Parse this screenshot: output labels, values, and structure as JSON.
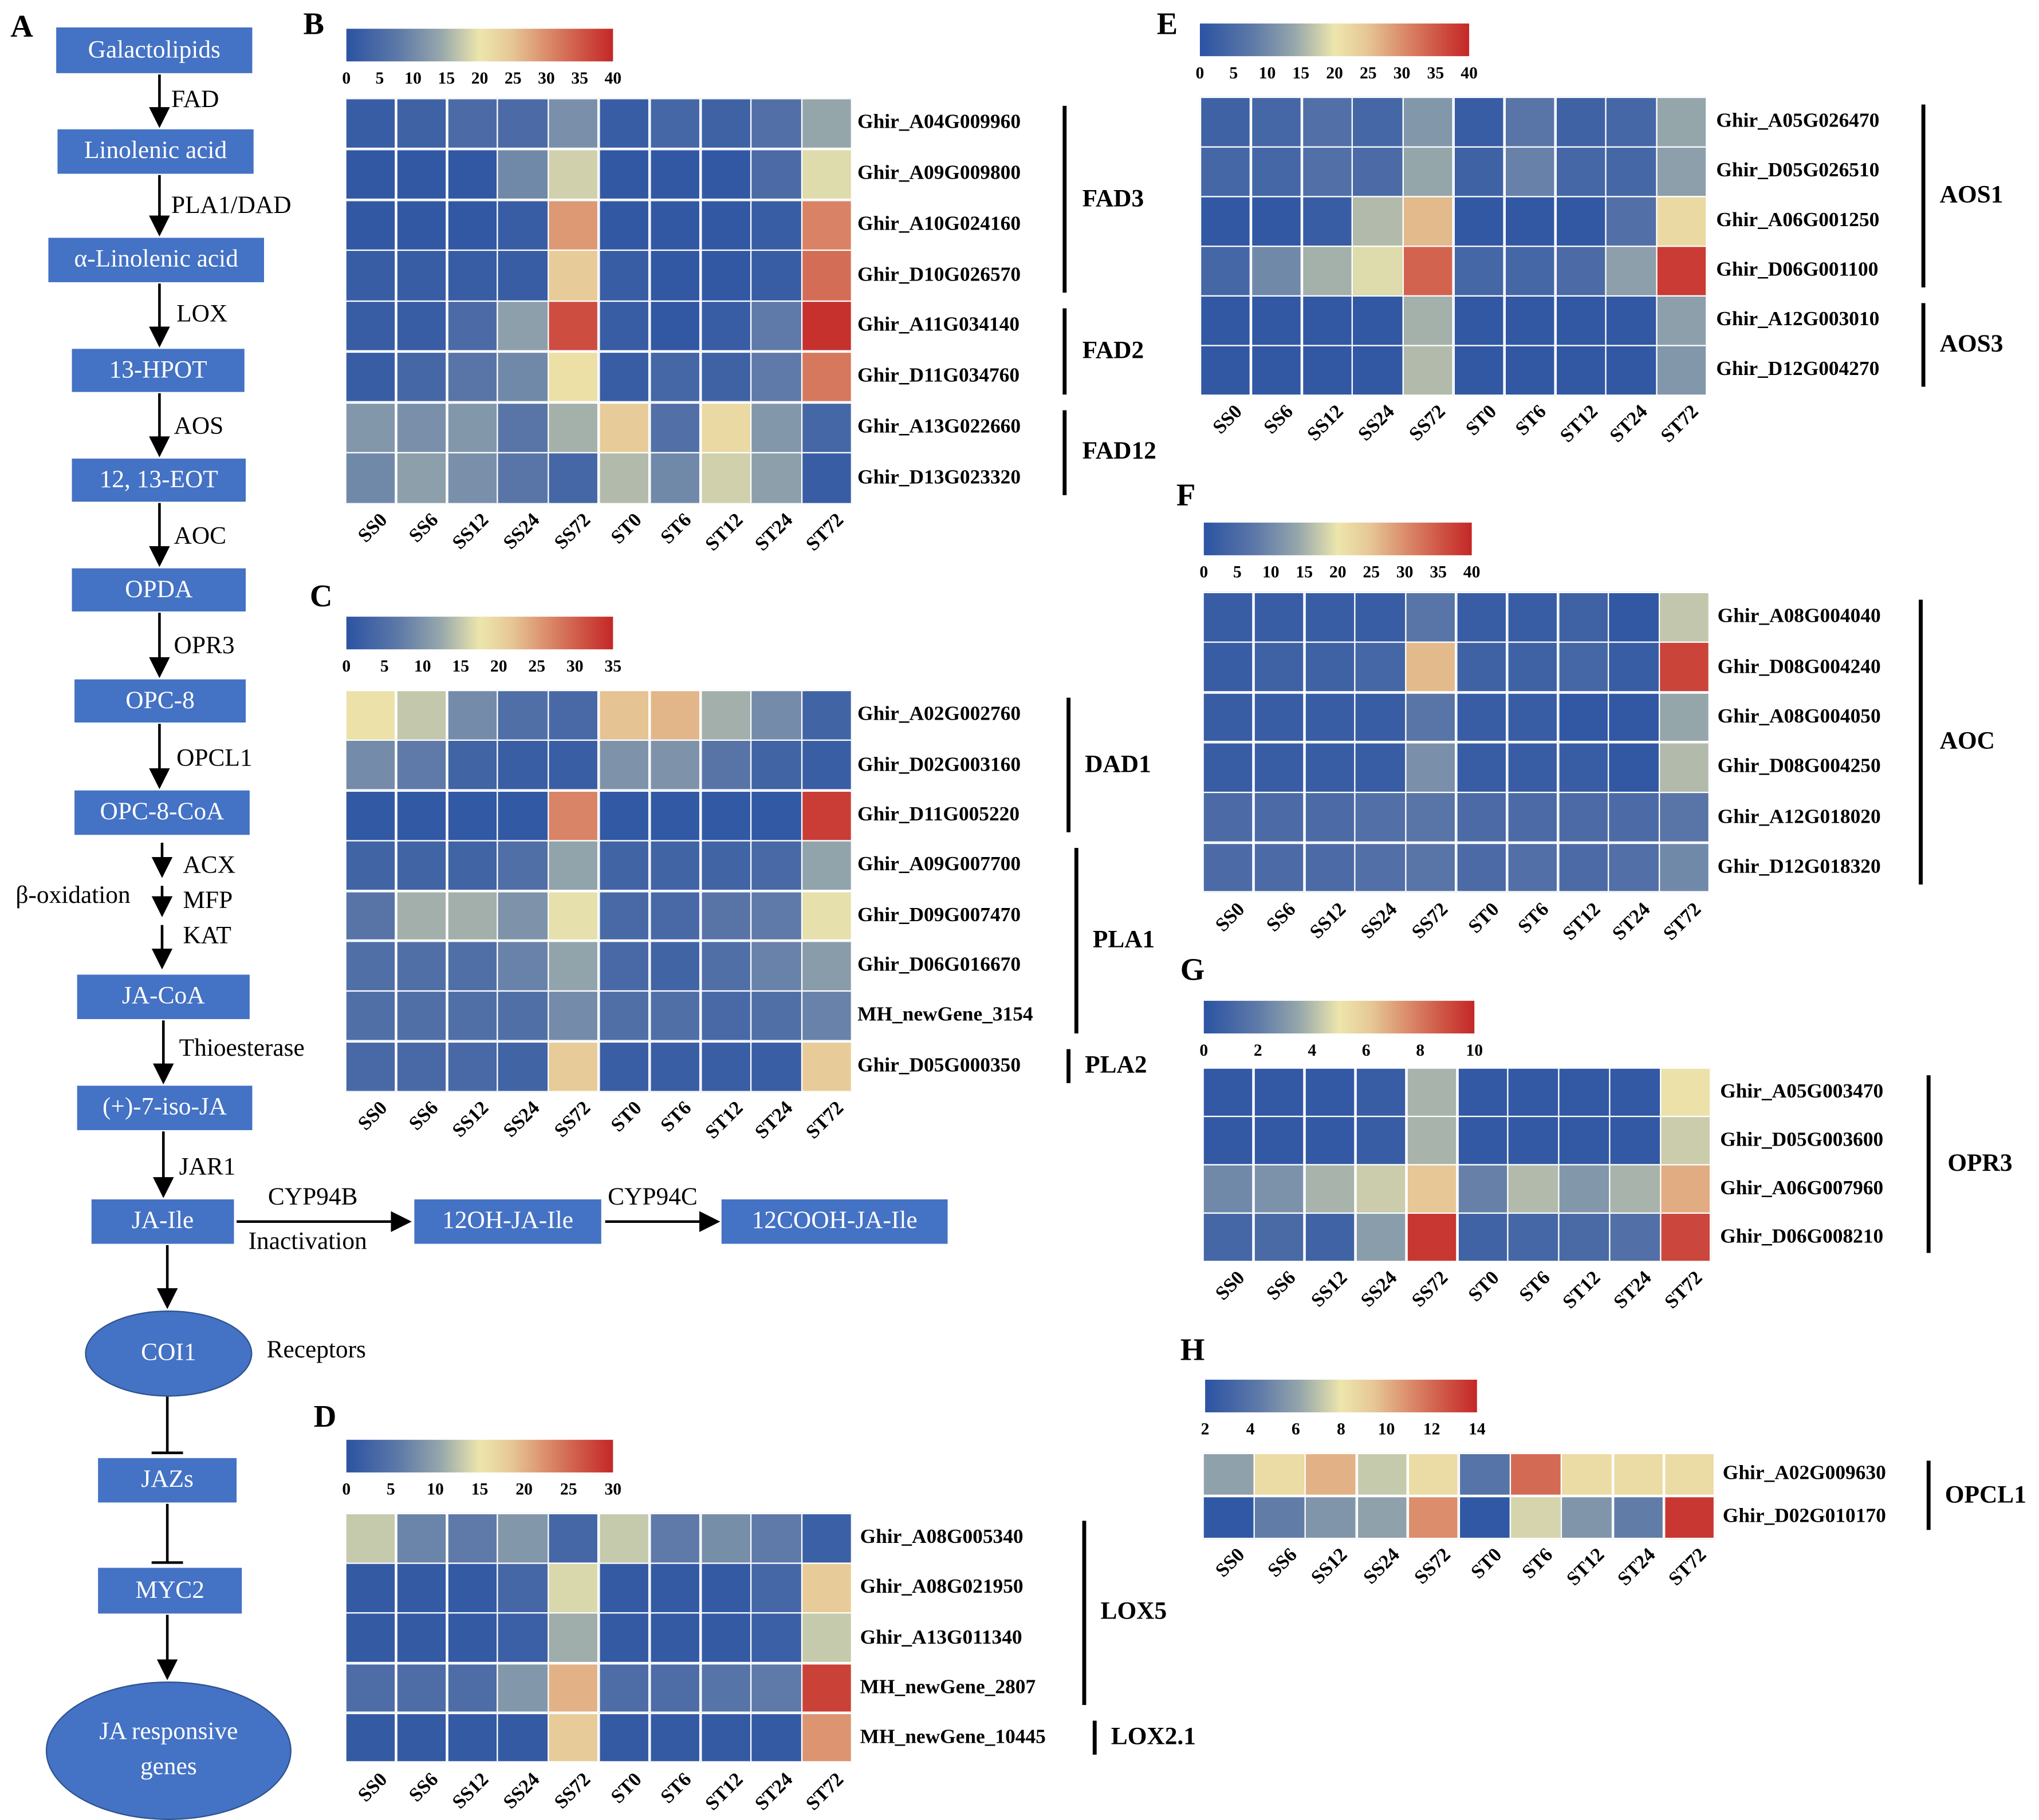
{
  "pathway": {
    "letter": "A",
    "nodes": {
      "galactolipids": "Galactolipids",
      "linolenic": "Linolenic acid",
      "alpha_linolenic": "α-Linolenic acid",
      "hpot": "13-HPOT",
      "eot": "12, 13-EOT",
      "opda": "OPDA",
      "opc8": "OPC-8",
      "opc8coa": "OPC-8-CoA",
      "jacoa": "JA-CoA",
      "isoja": "(+)-7-iso-JA",
      "jaile": "JA-Ile",
      "oh_jaile": "12OH-JA-Ile",
      "cooh_jaile": "12COOH-JA-Ile",
      "coi1": "COI1",
      "jazs": "JAZs",
      "myc2": "MYC2",
      "ja_genes": "JA responsive genes"
    },
    "enzymes": {
      "fad": "FAD",
      "pla1dad": "PLA1/DAD",
      "lox": "LOX",
      "aos": "AOS",
      "aoc": "AOC",
      "opr3": "OPR3",
      "opcl1": "OPCL1",
      "acx": "ACX",
      "mfp": "MFP",
      "kat": "KAT",
      "beta_ox": "β-oxidation",
      "thioesterase": "Thioesterase",
      "jar1": "JAR1",
      "cyp94b": "CYP94B",
      "inactivation": "Inactivation",
      "cyp94c": "CYP94C",
      "receptors": "Receptors"
    },
    "colors": {
      "box": "#4472c4"
    }
  },
  "chart_data": [
    {
      "type": "heatmap",
      "panel": "B",
      "scale": {
        "min": 0,
        "max": 40,
        "ticks": [
          0,
          5,
          10,
          15,
          20,
          25,
          30,
          35,
          40
        ]
      },
      "columns": [
        "SS0",
        "SS6",
        "SS12",
        "SS24",
        "SS72",
        "ST0",
        "ST6",
        "ST12",
        "ST24",
        "ST72"
      ],
      "rows": [
        {
          "gene": "Ghir_A04G009960",
          "values": [
            2,
            3,
            5,
            5,
            11,
            2,
            4,
            3,
            6,
            14
          ]
        },
        {
          "gene": "Ghir_A09G009800",
          "values": [
            1,
            1,
            1,
            10,
            18,
            1,
            1,
            1,
            5,
            19
          ]
        },
        {
          "gene": "Ghir_A10G024160",
          "values": [
            1,
            1,
            1,
            2,
            29,
            1,
            1,
            1,
            2,
            31
          ]
        },
        {
          "gene": "Ghir_D10G026570",
          "values": [
            2,
            2,
            2,
            2,
            24,
            2,
            1,
            1,
            2,
            33
          ]
        },
        {
          "gene": "Ghir_A11G034140",
          "values": [
            2,
            2,
            5,
            13,
            36,
            2,
            1,
            2,
            8,
            39
          ]
        },
        {
          "gene": "Ghir_D11G034760",
          "values": [
            2,
            4,
            7,
            10,
            21,
            2,
            4,
            3,
            8,
            32
          ]
        },
        {
          "gene": "Ghir_A13G022660",
          "values": [
            12,
            11,
            12,
            7,
            15,
            24,
            6,
            22,
            12,
            4
          ]
        },
        {
          "gene": "Ghir_D13G023320",
          "values": [
            10,
            13,
            11,
            7,
            4,
            16,
            10,
            18,
            13,
            2
          ]
        }
      ],
      "groups": [
        {
          "label": "FAD3",
          "from": 0,
          "to": 3
        },
        {
          "label": "FAD2",
          "from": 4,
          "to": 5
        },
        {
          "label": "FAD12",
          "from": 6,
          "to": 7
        }
      ]
    },
    {
      "type": "heatmap",
      "panel": "C",
      "scale": {
        "min": 0,
        "max": 35,
        "ticks": [
          0,
          5,
          10,
          15,
          20,
          25,
          30,
          35
        ]
      },
      "columns": [
        "SS0",
        "SS6",
        "SS12",
        "SS24",
        "SS72",
        "ST0",
        "ST6",
        "ST12",
        "ST24",
        "ST72"
      ],
      "rows": [
        {
          "gene": "Ghir_A02G002760",
          "values": [
            18,
            15,
            9,
            5,
            4,
            22,
            23,
            13,
            9,
            3
          ]
        },
        {
          "gene": "Ghir_D02G003160",
          "values": [
            9,
            7,
            3,
            2,
            2,
            10,
            10,
            6,
            3,
            2
          ]
        },
        {
          "gene": "Ghir_D11G005220",
          "values": [
            1,
            1,
            1,
            1,
            27,
            1,
            1,
            1,
            1,
            33
          ]
        },
        {
          "gene": "Ghir_A09G007700",
          "values": [
            3,
            3,
            3,
            5,
            12,
            3,
            3,
            3,
            4,
            12
          ]
        },
        {
          "gene": "Ghir_D09G007470",
          "values": [
            6,
            13,
            13,
            10,
            17,
            4,
            4,
            6,
            7,
            17
          ]
        },
        {
          "gene": "Ghir_D06G016670",
          "values": [
            5,
            5,
            5,
            8,
            12,
            4,
            3,
            5,
            8,
            11
          ]
        },
        {
          "gene": "MH_newGene_3154",
          "values": [
            5,
            5,
            5,
            5,
            9,
            5,
            5,
            4,
            5,
            8
          ]
        },
        {
          "gene": "Ghir_D05G000350",
          "values": [
            4,
            4,
            4,
            3,
            21,
            2,
            2,
            2,
            2,
            21
          ]
        }
      ],
      "groups": [
        {
          "label": "DAD1",
          "from": 0,
          "to": 2
        },
        {
          "label": "PLA1",
          "from": 3,
          "to": 6
        },
        {
          "label": "PLA2",
          "from": 7,
          "to": 7
        }
      ]
    },
    {
      "type": "heatmap",
      "panel": "D",
      "scale": {
        "min": 0,
        "max": 30,
        "ticks": [
          0,
          5,
          10,
          15,
          20,
          25,
          30
        ]
      },
      "columns": [
        "SS0",
        "SS6",
        "SS12",
        "SS24",
        "SS72",
        "ST0",
        "ST6",
        "ST12",
        "ST24",
        "ST72"
      ],
      "rows": [
        {
          "gene": "Ghir_A08G005340",
          "values": [
            13,
            7,
            6,
            9,
            3,
            13,
            6,
            8,
            6,
            2
          ]
        },
        {
          "gene": "Ghir_A08G021950",
          "values": [
            1,
            1,
            1,
            3,
            14,
            1,
            1,
            1,
            3,
            18
          ]
        },
        {
          "gene": "Ghir_A13G011340",
          "values": [
            1,
            1,
            1,
            2,
            11,
            1,
            1,
            1,
            2,
            13
          ]
        },
        {
          "gene": "MH_newGene_2807",
          "values": [
            4,
            4,
            4,
            9,
            20,
            4,
            4,
            5,
            6,
            28
          ]
        },
        {
          "gene": "MH_newGene_10445",
          "values": [
            1,
            1,
            1,
            1,
            18,
            1,
            1,
            1,
            1,
            22
          ]
        }
      ],
      "groups": [
        {
          "label": "LOX5",
          "from": 0,
          "to": 3
        },
        {
          "label": "LOX2.1",
          "from": 4,
          "to": 4
        }
      ]
    },
    {
      "type": "heatmap",
      "panel": "E",
      "scale": {
        "min": 0,
        "max": 40,
        "ticks": [
          0,
          5,
          10,
          15,
          20,
          25,
          30,
          35,
          40
        ]
      },
      "columns": [
        "SS0",
        "SS6",
        "SS12",
        "SS24",
        "SS72",
        "ST0",
        "ST6",
        "ST12",
        "ST24",
        "ST72"
      ],
      "rows": [
        {
          "gene": "Ghir_A05G026470",
          "values": [
            3,
            4,
            6,
            4,
            12,
            2,
            7,
            3,
            4,
            14
          ]
        },
        {
          "gene": "Ghir_D05G026510",
          "values": [
            4,
            4,
            6,
            5,
            14,
            3,
            9,
            4,
            4,
            13
          ]
        },
        {
          "gene": "Ghir_A06G001250",
          "values": [
            1,
            1,
            2,
            16,
            26,
            1,
            1,
            1,
            6,
            22
          ]
        },
        {
          "gene": "Ghir_D06G001100",
          "values": [
            4,
            10,
            15,
            19,
            34,
            4,
            4,
            5,
            13,
            38
          ]
        },
        {
          "gene": "Ghir_A12G003010",
          "values": [
            1,
            1,
            1,
            1,
            15,
            1,
            1,
            1,
            1,
            13
          ]
        },
        {
          "gene": "Ghir_D12G004270",
          "values": [
            1,
            1,
            1,
            1,
            16,
            1,
            1,
            1,
            1,
            12
          ]
        }
      ],
      "groups": [
        {
          "label": "AOS1",
          "from": 0,
          "to": 3
        },
        {
          "label": "AOS3",
          "from": 4,
          "to": 5
        }
      ]
    },
    {
      "type": "heatmap",
      "panel": "F",
      "scale": {
        "min": 0,
        "max": 40,
        "ticks": [
          0,
          5,
          10,
          15,
          20,
          25,
          30,
          35,
          40
        ]
      },
      "columns": [
        "SS0",
        "SS6",
        "SS12",
        "SS24",
        "SS72",
        "ST0",
        "ST6",
        "ST12",
        "ST24",
        "ST72"
      ],
      "rows": [
        {
          "gene": "Ghir_A08G004040",
          "values": [
            2,
            2,
            2,
            2,
            7,
            2,
            2,
            3,
            1,
            17
          ]
        },
        {
          "gene": "Ghir_D08G004240",
          "values": [
            2,
            3,
            3,
            4,
            26,
            3,
            3,
            4,
            2,
            37
          ]
        },
        {
          "gene": "Ghir_A08G004050",
          "values": [
            2,
            2,
            2,
            2,
            7,
            2,
            2,
            1,
            1,
            14
          ]
        },
        {
          "gene": "Ghir_D08G004250",
          "values": [
            2,
            2,
            2,
            2,
            11,
            2,
            2,
            2,
            1,
            16
          ]
        },
        {
          "gene": "Ghir_A12G018020",
          "values": [
            5,
            5,
            5,
            6,
            7,
            5,
            5,
            5,
            5,
            7
          ]
        },
        {
          "gene": "Ghir_D12G018320",
          "values": [
            5,
            5,
            5,
            6,
            7,
            5,
            6,
            5,
            6,
            10
          ]
        }
      ],
      "groups": [
        {
          "label": "AOC",
          "from": 0,
          "to": 5
        }
      ]
    },
    {
      "type": "heatmap",
      "panel": "G",
      "scale": {
        "min": 0,
        "max": 10,
        "ticks": [
          0,
          2,
          4,
          6,
          8,
          10
        ]
      },
      "columns": [
        "SS0",
        "SS6",
        "SS12",
        "SS24",
        "SS72",
        "ST0",
        "ST6",
        "ST12",
        "ST24",
        "ST72"
      ],
      "rows": [
        {
          "gene": "Ghir_A05G003470",
          "values": [
            0.3,
            0.3,
            0.3,
            0.5,
            3.8,
            0.3,
            0.3,
            0.3,
            0.3,
            5.2
          ]
        },
        {
          "gene": "Ghir_D05G003600",
          "values": [
            0.3,
            0.3,
            0.3,
            0.5,
            3.8,
            0.3,
            0.3,
            0.3,
            0.3,
            4.4
          ]
        },
        {
          "gene": "Ghir_A06G007960",
          "values": [
            2.5,
            2.8,
            3.8,
            4.4,
            6.2,
            2.2,
            4,
            3,
            3.8,
            6.8
          ]
        },
        {
          "gene": "Ghir_D06G008210",
          "values": [
            1,
            1.2,
            0.8,
            3.2,
            9.6,
            0.8,
            1,
            1.2,
            1.5,
            9.2
          ]
        }
      ],
      "groups": [
        {
          "label": "OPR3",
          "from": 0,
          "to": 3
        }
      ]
    },
    {
      "type": "heatmap",
      "panel": "H",
      "scale": {
        "min": 2,
        "max": 14,
        "ticks": [
          2,
          4,
          6,
          8,
          10,
          12,
          14
        ]
      },
      "columns": [
        "SS0",
        "SS6",
        "SS12",
        "SS24",
        "SS72",
        "ST0",
        "ST6",
        "ST12",
        "ST24",
        "ST72"
      ],
      "rows": [
        {
          "gene": "Ghir_A02G009630",
          "values": [
            6,
            8.5,
            10,
            7.2,
            8.5,
            4,
            12,
            8.5,
            8.5,
            8.5
          ]
        },
        {
          "gene": "Ghir_D02G010170",
          "values": [
            2.3,
            4.5,
            5.5,
            6,
            11,
            2.3,
            7.5,
            5.5,
            4.5,
            13.5
          ]
        }
      ],
      "groups": [
        {
          "label": "OPCL1",
          "from": 0,
          "to": 1
        }
      ]
    }
  ]
}
